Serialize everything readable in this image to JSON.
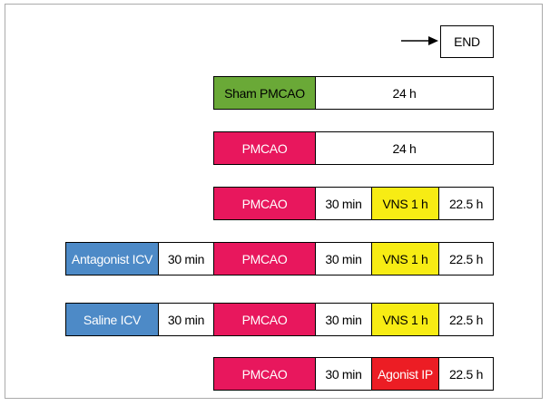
{
  "colors": {
    "sham": "#6aa937",
    "pmcao": "#e8175d",
    "vns": "#f7ec14",
    "agonist": "#ec1d24",
    "icv": "#4d8ac7",
    "plain": "#ffffff",
    "border": "#000000"
  },
  "end_label": "END",
  "rows": {
    "row1": {
      "sham": "Sham PMCAO",
      "dur": "24 h"
    },
    "row2": {
      "pmcao": "PMCAO",
      "dur": "24 h"
    },
    "row3": {
      "pmcao": "PMCAO",
      "wait": "30 min",
      "vns": "VNS 1 h",
      "rest": "22.5 h"
    },
    "row4": {
      "icv": "Antagonist ICV",
      "icv_wait": "30 min",
      "pmcao": "PMCAO",
      "wait": "30 min",
      "vns": "VNS 1 h",
      "rest": "22.5 h"
    },
    "row5": {
      "icv": "Saline ICV",
      "icv_wait": "30 min",
      "pmcao": "PMCAO",
      "wait": "30 min",
      "vns": "VNS 1 h",
      "rest": "22.5 h"
    },
    "row6": {
      "pmcao": "PMCAO",
      "wait": "30 min",
      "agonist": "Agonist IP",
      "rest": "22.5 h"
    }
  }
}
